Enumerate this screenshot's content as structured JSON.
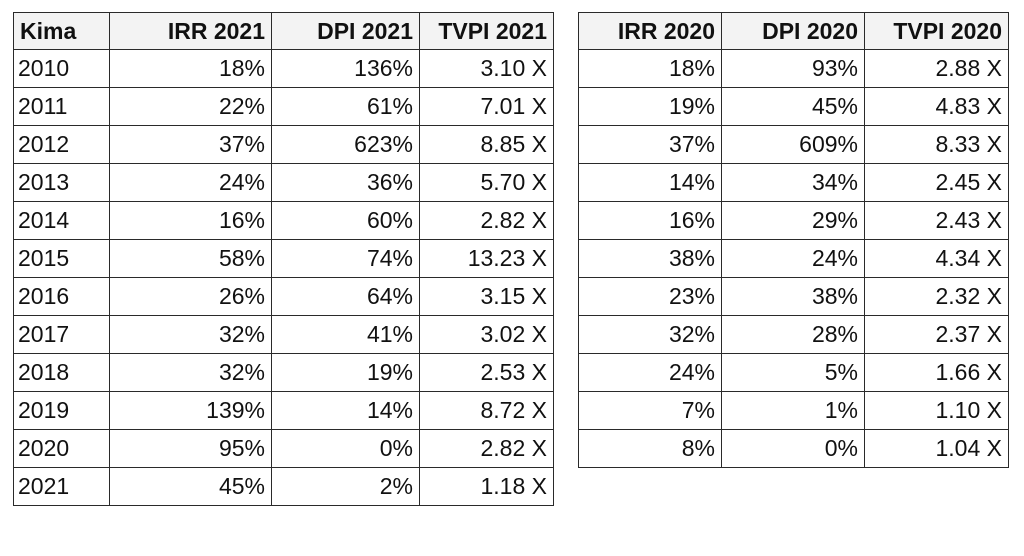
{
  "left_table": {
    "headers": [
      "Kima",
      "IRR 2021",
      "DPI 2021",
      "TVPI 2021"
    ],
    "rows": [
      [
        "2010",
        "18%",
        "136%",
        "3.10 X"
      ],
      [
        "2011",
        "22%",
        "61%",
        "7.01 X"
      ],
      [
        "2012",
        "37%",
        "623%",
        "8.85 X"
      ],
      [
        "2013",
        "24%",
        "36%",
        "5.70 X"
      ],
      [
        "2014",
        "16%",
        "60%",
        "2.82 X"
      ],
      [
        "2015",
        "58%",
        "74%",
        "13.23 X"
      ],
      [
        "2016",
        "26%",
        "64%",
        "3.15 X"
      ],
      [
        "2017",
        "32%",
        "41%",
        "3.02 X"
      ],
      [
        "2018",
        "32%",
        "19%",
        "2.53 X"
      ],
      [
        "2019",
        "139%",
        "14%",
        "8.72 X"
      ],
      [
        "2020",
        "95%",
        "0%",
        "2.82 X"
      ],
      [
        "2021",
        "45%",
        "2%",
        "1.18 X"
      ]
    ]
  },
  "right_table": {
    "headers": [
      "IRR 2020",
      "DPI 2020",
      "TVPI 2020"
    ],
    "rows": [
      [
        "18%",
        "93%",
        "2.88 X"
      ],
      [
        "19%",
        "45%",
        "4.83 X"
      ],
      [
        "37%",
        "609%",
        "8.33 X"
      ],
      [
        "14%",
        "34%",
        "2.45 X"
      ],
      [
        "16%",
        "29%",
        "2.43 X"
      ],
      [
        "38%",
        "24%",
        "4.34 X"
      ],
      [
        "23%",
        "38%",
        "2.32 X"
      ],
      [
        "32%",
        "28%",
        "2.37 X"
      ],
      [
        "24%",
        "5%",
        "1.66 X"
      ],
      [
        "7%",
        "1%",
        "1.10 X"
      ],
      [
        "8%",
        "0%",
        "1.04 X"
      ]
    ]
  }
}
